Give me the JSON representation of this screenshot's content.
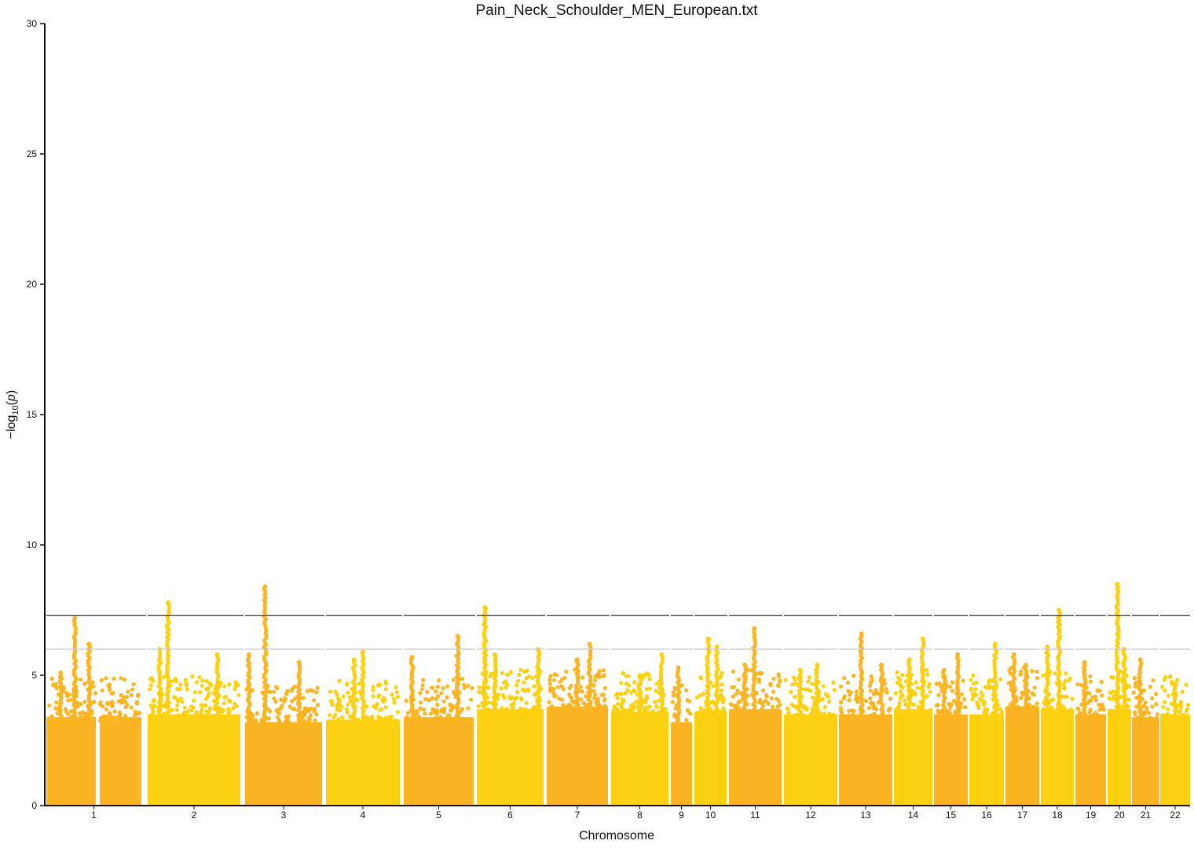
{
  "chart_data": {
    "type": "scatter",
    "title": "Pain_Neck_Schoulder_MEN_European.txt",
    "xlabel": "Chromosome",
    "ylabel_parts": {
      "prefix": "−log",
      "sub": "10",
      "suffix": "(p)"
    },
    "ylim": [
      0,
      30
    ],
    "yticks": [
      0,
      5,
      10,
      15,
      20,
      25,
      30
    ],
    "thresholds": [
      {
        "value": 7.3,
        "color": "#333333"
      },
      {
        "value": 6.0,
        "color": "#c8c8c8"
      }
    ],
    "colors": [
      "#FCB522",
      "#FDD10F"
    ],
    "chromosomes": [
      {
        "label": "1",
        "baseline": 4.2,
        "peaks": [
          [
            0.3,
            7.2
          ],
          [
            0.45,
            6.2
          ],
          [
            0.15,
            5.1
          ]
        ]
      },
      {
        "label": "2",
        "baseline": 4.3,
        "peaks": [
          [
            0.22,
            7.8
          ],
          [
            0.75,
            5.8
          ],
          [
            0.13,
            6.0
          ]
        ]
      },
      {
        "label": "3",
        "baseline": 4.0,
        "peaks": [
          [
            0.26,
            8.4
          ],
          [
            0.05,
            5.8
          ],
          [
            0.7,
            5.5
          ]
        ]
      },
      {
        "label": "4",
        "baseline": 4.1,
        "peaks": [
          [
            0.5,
            5.9
          ],
          [
            0.38,
            5.6
          ]
        ]
      },
      {
        "label": "5",
        "baseline": 4.2,
        "peaks": [
          [
            0.77,
            6.5
          ],
          [
            0.12,
            5.7
          ]
        ]
      },
      {
        "label": "6",
        "baseline": 4.5,
        "peaks": [
          [
            0.12,
            7.6
          ],
          [
            0.92,
            6.0
          ],
          [
            0.27,
            5.8
          ]
        ]
      },
      {
        "label": "7",
        "baseline": 4.6,
        "peaks": [
          [
            0.7,
            6.2
          ],
          [
            0.5,
            5.6
          ]
        ]
      },
      {
        "label": "8",
        "baseline": 4.4,
        "peaks": [
          [
            0.88,
            5.8
          ],
          [
            0.5,
            5.0
          ]
        ]
      },
      {
        "label": "9",
        "baseline": 4.0,
        "peaks": [
          [
            0.35,
            5.3
          ]
        ]
      },
      {
        "label": "10",
        "baseline": 4.4,
        "peaks": [
          [
            0.42,
            6.4
          ],
          [
            0.7,
            6.1
          ]
        ]
      },
      {
        "label": "11",
        "baseline": 4.5,
        "peaks": [
          [
            0.48,
            6.8
          ],
          [
            0.3,
            5.4
          ]
        ]
      },
      {
        "label": "12",
        "baseline": 4.3,
        "peaks": [
          [
            0.62,
            5.4
          ],
          [
            0.3,
            5.2
          ]
        ]
      },
      {
        "label": "13",
        "baseline": 4.3,
        "peaks": [
          [
            0.42,
            6.6
          ],
          [
            0.8,
            5.4
          ]
        ]
      },
      {
        "label": "14",
        "baseline": 4.5,
        "peaks": [
          [
            0.75,
            6.4
          ],
          [
            0.4,
            5.6
          ]
        ]
      },
      {
        "label": "15",
        "baseline": 4.3,
        "peaks": [
          [
            0.7,
            5.8
          ],
          [
            0.3,
            5.2
          ]
        ]
      },
      {
        "label": "16",
        "baseline": 4.3,
        "peaks": [
          [
            0.75,
            6.2
          ]
        ]
      },
      {
        "label": "17",
        "baseline": 4.6,
        "peaks": [
          [
            0.25,
            5.8
          ],
          [
            0.6,
            5.4
          ]
        ]
      },
      {
        "label": "18",
        "baseline": 4.5,
        "peaks": [
          [
            0.55,
            7.5
          ],
          [
            0.2,
            6.1
          ]
        ]
      },
      {
        "label": "19",
        "baseline": 4.3,
        "peaks": [
          [
            0.3,
            5.5
          ]
        ]
      },
      {
        "label": "20",
        "baseline": 4.5,
        "peaks": [
          [
            0.42,
            8.5
          ],
          [
            0.7,
            6.0
          ]
        ]
      },
      {
        "label": "21",
        "baseline": 4.2,
        "peaks": [
          [
            0.3,
            5.6
          ]
        ]
      },
      {
        "label": "22",
        "baseline": 4.3,
        "peaks": [
          [
            0.5,
            4.7
          ]
        ]
      }
    ]
  }
}
